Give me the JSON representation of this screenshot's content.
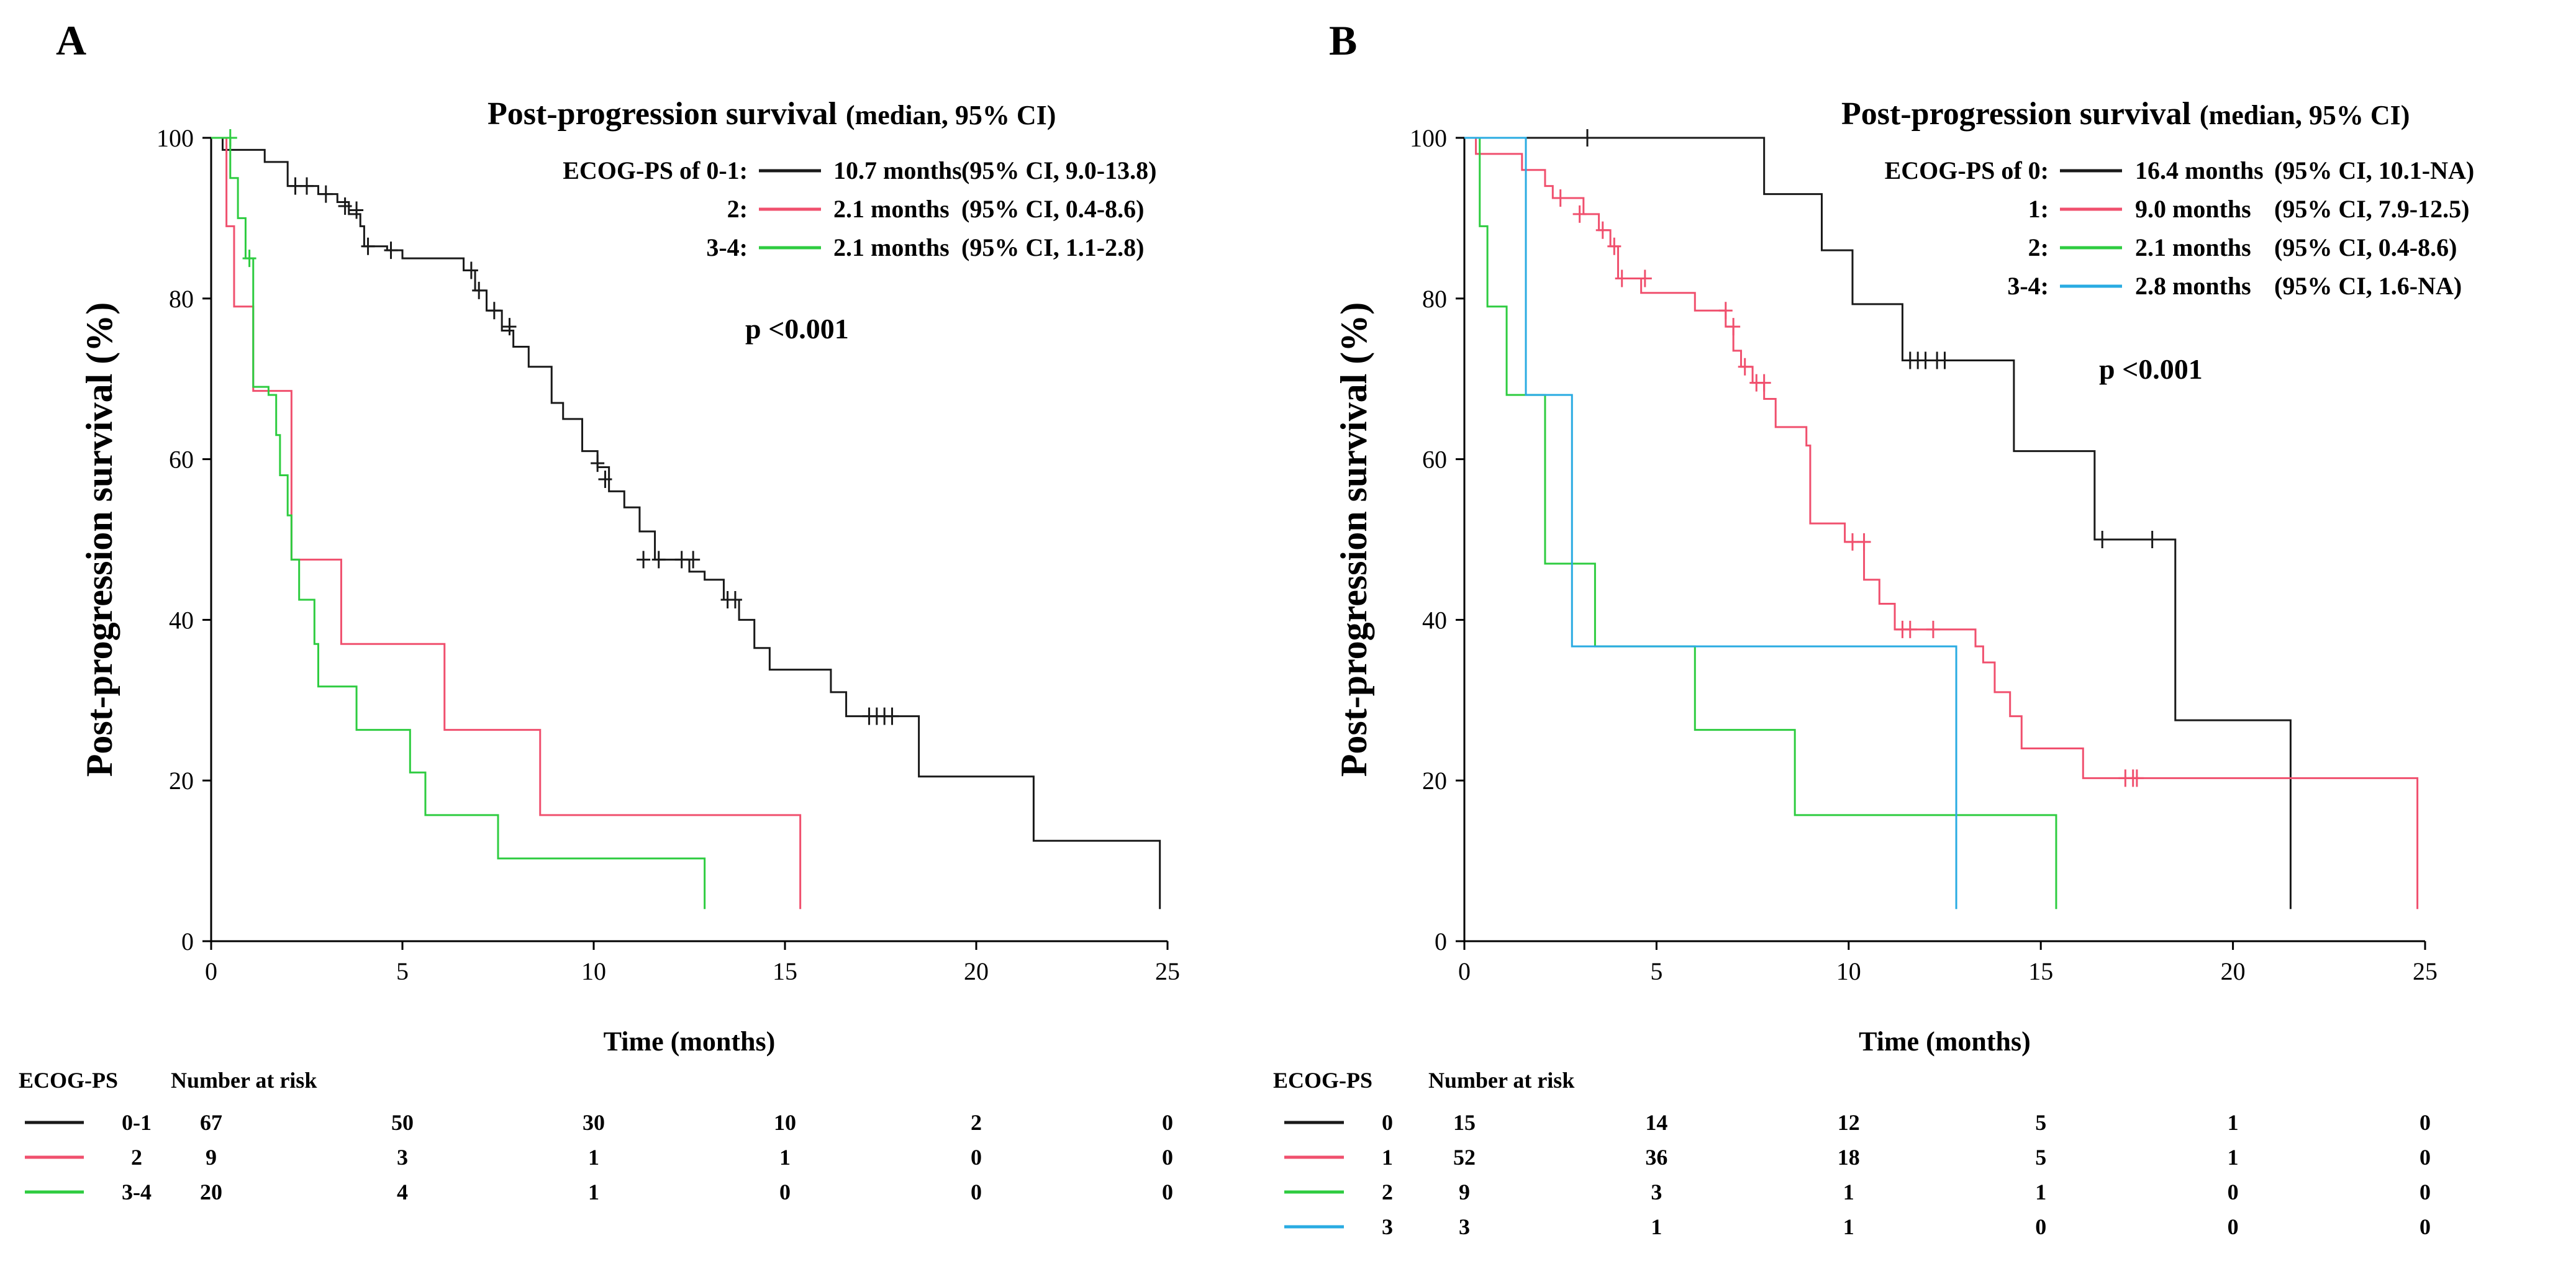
{
  "chart_data": [
    {
      "panel": "A",
      "type": "line",
      "title": "Post-progression survival",
      "title_note": "(median, 95% CI)",
      "xlabel": "Time (months)",
      "ylabel": "Post-progression survival (%)",
      "xlim": [
        0,
        25
      ],
      "ylim": [
        0,
        100
      ],
      "xticks": [
        "0",
        "5",
        "10",
        "15",
        "20",
        "25"
      ],
      "yticks": [
        "0",
        "20",
        "40",
        "60",
        "80",
        "100"
      ],
      "p_value": "p <0.001",
      "legend": [
        {
          "label": "ECOG-PS of 0-1:",
          "median": "10.7 months",
          "ci": "(95% CI, 9.0-13.8)",
          "color": "#1a1a1a"
        },
        {
          "label": "2:",
          "median": "2.1 months",
          "ci": "(95% CI, 0.4-8.6)",
          "color": "#f0506e"
        },
        {
          "label": "3-4:",
          "median": "2.1 months",
          "ci": "(95% CI, 1.1-2.8)",
          "color": "#2ecc40"
        }
      ],
      "series": [
        {
          "name": "0-1",
          "color": "#1a1a1a",
          "steps": [
            [
              0,
              100
            ],
            [
              0.3,
              98.5
            ],
            [
              1.4,
              97
            ],
            [
              2,
              94
            ],
            [
              2.8,
              93
            ],
            [
              3.3,
              92
            ],
            [
              3.6,
              90.5
            ],
            [
              3.9,
              89
            ],
            [
              4,
              86.5
            ],
            [
              4.6,
              86
            ],
            [
              5,
              85
            ],
            [
              6.6,
              83.5
            ],
            [
              6.9,
              81
            ],
            [
              7.2,
              78.5
            ],
            [
              7.6,
              76
            ],
            [
              7.9,
              74
            ],
            [
              8.3,
              71.5
            ],
            [
              8.9,
              67
            ],
            [
              9.2,
              65
            ],
            [
              9.7,
              61
            ],
            [
              10.1,
              59
            ],
            [
              10.4,
              56
            ],
            [
              10.8,
              54
            ],
            [
              11.2,
              51
            ],
            [
              11.6,
              47.5
            ],
            [
              12.5,
              46
            ],
            [
              12.9,
              45
            ],
            [
              13.4,
              42.5
            ],
            [
              13.8,
              40
            ],
            [
              14.2,
              36.5
            ],
            [
              14.6,
              33.8
            ],
            [
              16.2,
              31
            ],
            [
              16.6,
              28
            ],
            [
              18.5,
              20.5
            ],
            [
              21.5,
              12.5
            ],
            [
              24.8,
              4
            ]
          ],
          "censor": [
            [
              2.2,
              94
            ],
            [
              2.5,
              94
            ],
            [
              3,
              93
            ],
            [
              3.5,
              91.5
            ],
            [
              3.8,
              91
            ],
            [
              4.1,
              86.5
            ],
            [
              4.7,
              86
            ],
            [
              6.8,
              83.5
            ],
            [
              7,
              81
            ],
            [
              7.4,
              78.5
            ],
            [
              7.8,
              76.5
            ],
            [
              10.1,
              59.5
            ],
            [
              10.3,
              57.5
            ],
            [
              11.3,
              47.5
            ],
            [
              11.7,
              47.5
            ],
            [
              12.3,
              47.5
            ],
            [
              12.6,
              47.5
            ],
            [
              13.5,
              42.5
            ],
            [
              13.7,
              42.5
            ],
            [
              17.2,
              28
            ],
            [
              17.4,
              28
            ],
            [
              17.6,
              28
            ],
            [
              17.8,
              28
            ]
          ]
        },
        {
          "name": "2",
          "color": "#f0506e",
          "steps": [
            [
              0,
              100
            ],
            [
              0.4,
              89
            ],
            [
              0.6,
              79
            ],
            [
              1.1,
              68.5
            ],
            [
              2.1,
              47.5
            ],
            [
              3.4,
              37
            ],
            [
              6.1,
              26.3
            ],
            [
              8.6,
              15.7
            ],
            [
              15.4,
              4
            ]
          ],
          "censor": []
        },
        {
          "name": "3-4",
          "color": "#2ecc40",
          "steps": [
            [
              0,
              100
            ],
            [
              0.5,
              95
            ],
            [
              0.7,
              90
            ],
            [
              0.9,
              85
            ],
            [
              1.1,
              69
            ],
            [
              1.5,
              68
            ],
            [
              1.7,
              63
            ],
            [
              1.8,
              58
            ],
            [
              2,
              53
            ],
            [
              2.1,
              47.5
            ],
            [
              2.3,
              42.5
            ],
            [
              2.7,
              37
            ],
            [
              2.8,
              31.7
            ],
            [
              3.8,
              26.3
            ],
            [
              5.2,
              21
            ],
            [
              5.6,
              15.7
            ],
            [
              7.5,
              10.3
            ],
            [
              12.9,
              4
            ]
          ],
          "censor": [
            [
              0.5,
              100
            ],
            [
              1,
              85
            ]
          ]
        }
      ],
      "risk_table": {
        "header_group": "ECOG-PS",
        "header_number": "Number at risk",
        "times": [
          0,
          5,
          10,
          15,
          20,
          25
        ],
        "rows": [
          {
            "label": "0-1",
            "color": "#1a1a1a",
            "counts": [
              "67",
              "50",
              "30",
              "10",
              "2",
              "0"
            ]
          },
          {
            "label": "2",
            "color": "#f0506e",
            "counts": [
              "9",
              "3",
              "1",
              "1",
              "0",
              "0"
            ]
          },
          {
            "label": "3-4",
            "color": "#2ecc40",
            "counts": [
              "20",
              "4",
              "1",
              "0",
              "0",
              "0"
            ]
          }
        ]
      }
    },
    {
      "panel": "B",
      "type": "line",
      "title": "Post-progression survival",
      "title_note": "(median, 95% CI)",
      "xlabel": "Time (months)",
      "ylabel": "Post-progression survival (%)",
      "xlim": [
        0,
        25
      ],
      "ylim": [
        0,
        100
      ],
      "xticks": [
        "0",
        "5",
        "10",
        "15",
        "20",
        "25"
      ],
      "yticks": [
        "0",
        "20",
        "40",
        "60",
        "80",
        "100"
      ],
      "p_value": "p <0.001",
      "legend": [
        {
          "label": "ECOG-PS of 0:",
          "median": "16.4 months",
          "ci": "(95% CI, 10.1-NA)",
          "color": "#1a1a1a"
        },
        {
          "label": "1:",
          "median": "9.0 months",
          "ci": "(95% CI, 7.9-12.5)",
          "color": "#f0506e"
        },
        {
          "label": "2:",
          "median": "2.1 months",
          "ci": "(95% CI, 0.4-8.6)",
          "color": "#2ecc40"
        },
        {
          "label": "3-4:",
          "median": "2.8 months",
          "ci": "(95% CI, 1.6-NA)",
          "color": "#29abe2"
        }
      ],
      "series": [
        {
          "name": "0",
          "color": "#1a1a1a",
          "steps": [
            [
              0,
              100
            ],
            [
              7.8,
              93
            ],
            [
              9.3,
              86
            ],
            [
              10.1,
              79.3
            ],
            [
              11.4,
              72.3
            ],
            [
              14.3,
              61
            ],
            [
              16.4,
              50
            ],
            [
              18.5,
              27.5
            ],
            [
              21.5,
              4
            ]
          ],
          "censor": [
            [
              3.2,
              100
            ],
            [
              11.6,
              72.3
            ],
            [
              11.8,
              72.3
            ],
            [
              12,
              72.3
            ],
            [
              12.3,
              72.3
            ],
            [
              12.5,
              72.3
            ],
            [
              16.6,
              50
            ],
            [
              17.9,
              50
            ]
          ]
        },
        {
          "name": "1",
          "color": "#f0506e",
          "steps": [
            [
              0,
              100
            ],
            [
              0.3,
              98
            ],
            [
              1.5,
              96
            ],
            [
              2.1,
              94
            ],
            [
              2.3,
              92.5
            ],
            [
              3.1,
              90.5
            ],
            [
              3.5,
              88.5
            ],
            [
              3.8,
              86.5
            ],
            [
              4,
              82.5
            ],
            [
              4.6,
              80.7
            ],
            [
              6,
              78.5
            ],
            [
              6.8,
              76.5
            ],
            [
              7,
              73.5
            ],
            [
              7.2,
              71.5
            ],
            [
              7.5,
              69.5
            ],
            [
              7.8,
              67.5
            ],
            [
              8.1,
              64
            ],
            [
              8.9,
              61.7
            ],
            [
              9,
              52
            ],
            [
              9.9,
              49.7
            ],
            [
              10.4,
              45
            ],
            [
              10.8,
              42
            ],
            [
              11.2,
              38.8
            ],
            [
              13.3,
              36.7
            ],
            [
              13.5,
              34.7
            ],
            [
              13.8,
              31
            ],
            [
              14.2,
              28
            ],
            [
              14.5,
              24
            ],
            [
              16.1,
              20.3
            ],
            [
              24.8,
              4
            ]
          ],
          "censor": [
            [
              2.5,
              92.5
            ],
            [
              3,
              90.5
            ],
            [
              3.6,
              88.5
            ],
            [
              3.9,
              86.5
            ],
            [
              4.1,
              82.5
            ],
            [
              4.7,
              82.5
            ],
            [
              6.8,
              78.5
            ],
            [
              7,
              76.5
            ],
            [
              7.3,
              71.5
            ],
            [
              7.6,
              69.5
            ],
            [
              7.8,
              69.5
            ],
            [
              10.1,
              49.7
            ],
            [
              10.4,
              49.7
            ],
            [
              11.4,
              38.8
            ],
            [
              11.6,
              38.8
            ],
            [
              12.2,
              38.8
            ],
            [
              17.2,
              20.3
            ],
            [
              17.4,
              20.3
            ],
            [
              17.5,
              20.3
            ]
          ]
        },
        {
          "name": "2",
          "color": "#2ecc40",
          "steps": [
            [
              0,
              100
            ],
            [
              0.4,
              89
            ],
            [
              0.6,
              79
            ],
            [
              1.1,
              68
            ],
            [
              2.1,
              47
            ],
            [
              3.4,
              36.7
            ],
            [
              6,
              26.3
            ],
            [
              8.6,
              15.7
            ],
            [
              15.4,
              4
            ]
          ],
          "censor": []
        },
        {
          "name": "3",
          "color": "#29abe2",
          "steps": [
            [
              0,
              100
            ],
            [
              1.6,
              68
            ],
            [
              2.8,
              36.7
            ],
            [
              12.8,
              4
            ]
          ],
          "censor": []
        }
      ],
      "risk_table": {
        "header_group": "ECOG-PS",
        "header_number": "Number at risk",
        "times": [
          0,
          5,
          10,
          15,
          20,
          25
        ],
        "rows": [
          {
            "label": "0",
            "color": "#1a1a1a",
            "counts": [
              "15",
              "14",
              "12",
              "5",
              "1",
              "0"
            ]
          },
          {
            "label": "1",
            "color": "#f0506e",
            "counts": [
              "52",
              "36",
              "18",
              "5",
              "1",
              "0"
            ]
          },
          {
            "label": "2",
            "color": "#2ecc40",
            "counts": [
              "9",
              "3",
              "1",
              "1",
              "0",
              "0"
            ]
          },
          {
            "label": "3",
            "color": "#29abe2",
            "counts": [
              "3",
              "1",
              "1",
              "0",
              "0",
              "0"
            ]
          }
        ]
      }
    }
  ]
}
